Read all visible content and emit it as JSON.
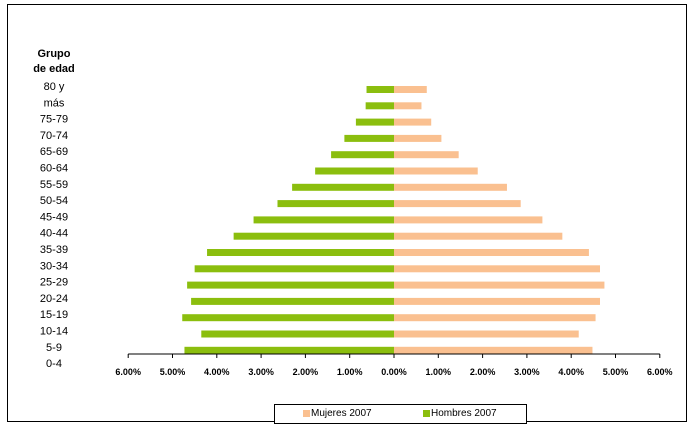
{
  "chart_data": {
    "type": "bar",
    "orientation": "horizontal",
    "layout": "population-pyramid",
    "y_axis_title": [
      "Grupo",
      "de edad"
    ],
    "age_labels": [
      "80 y",
      "más",
      "75-79",
      "70-74",
      "65-69",
      "60-64",
      "55-59",
      "50-54",
      "45-49",
      "40-44",
      "35-39",
      "30-34",
      "25-29",
      "20-24",
      "15-19",
      "10-14",
      "5-9",
      "0-4"
    ],
    "bar_rows": [
      {
        "men": 0.62,
        "women": 0.74
      },
      {
        "men": 0.64,
        "women": 0.62
      },
      {
        "men": 0.86,
        "women": 0.84
      },
      {
        "men": 1.12,
        "women": 1.07
      },
      {
        "men": 1.42,
        "women": 1.46
      },
      {
        "men": 1.78,
        "women": 1.89
      },
      {
        "men": 2.3,
        "women": 2.55
      },
      {
        "men": 2.63,
        "women": 2.86
      },
      {
        "men": 3.17,
        "women": 3.35
      },
      {
        "men": 3.62,
        "women": 3.8
      },
      {
        "men": 4.22,
        "women": 4.4
      },
      {
        "men": 4.5,
        "women": 4.65
      },
      {
        "men": 4.67,
        "women": 4.75
      },
      {
        "men": 4.58,
        "women": 4.65
      },
      {
        "men": 4.78,
        "women": 4.55
      },
      {
        "men": 4.35,
        "women": 4.17
      },
      {
        "men": 4.73,
        "women": 4.48
      }
    ],
    "x_ticks": [
      "6.00%",
      "5.00%",
      "4.00%",
      "3.00%",
      "2.00%",
      "1.00%",
      "0.00%",
      "1.00%",
      "2.00%",
      "3.00%",
      "4.00%",
      "5.00%",
      "6.00%"
    ],
    "xlim": [
      -6,
      6
    ],
    "series": [
      {
        "name": "Mujeres 2007",
        "color": "#fac090",
        "side": "right"
      },
      {
        "name": "Hombres 2007",
        "color": "#8bbe0e",
        "side": "left"
      }
    ],
    "legend_position": "bottom"
  }
}
